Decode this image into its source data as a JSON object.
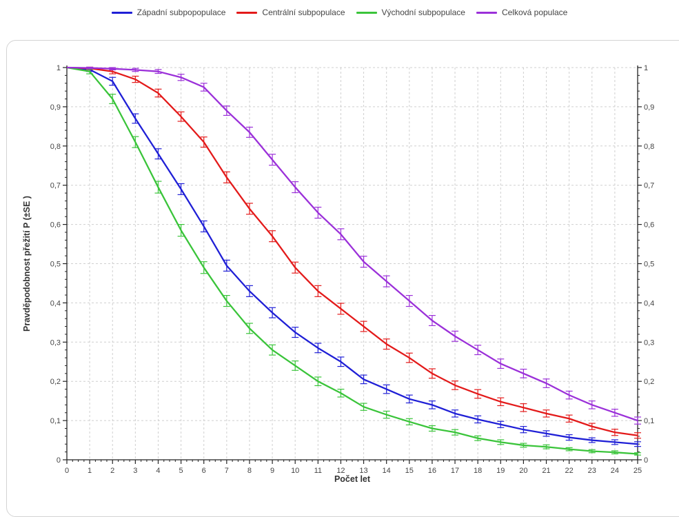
{
  "chart_data": {
    "type": "line",
    "title": "",
    "xlabel": "Počet let",
    "ylabel": "Pravděpodobnost přežití P (±SE )",
    "xlim": [
      0,
      25
    ],
    "ylim": [
      0,
      1
    ],
    "x_ticks": [
      0,
      1,
      2,
      3,
      4,
      5,
      6,
      7,
      8,
      9,
      10,
      11,
      12,
      13,
      14,
      15,
      16,
      17,
      18,
      19,
      20,
      21,
      22,
      23,
      24,
      25
    ],
    "y_tick_labels": [
      "0",
      "0,1",
      "0,2",
      "0,3",
      "0,4",
      "0,5",
      "0,6",
      "0,7",
      "0,8",
      "0,9",
      "1"
    ],
    "grid": true,
    "legend_position": "top",
    "secondary_y_axis": true,
    "x": [
      0,
      1,
      2,
      3,
      4,
      5,
      6,
      7,
      8,
      9,
      10,
      11,
      12,
      13,
      14,
      15,
      16,
      17,
      18,
      19,
      20,
      21,
      22,
      23,
      24,
      25
    ],
    "series": [
      {
        "name": "Západní subpopopulace",
        "color": "#1f1fd6",
        "values": [
          1,
          0.995,
          0.965,
          0.87,
          0.78,
          0.69,
          0.595,
          0.495,
          0.43,
          0.375,
          0.325,
          0.285,
          0.25,
          0.205,
          0.18,
          0.155,
          0.14,
          0.118,
          0.103,
          0.09,
          0.077,
          0.067,
          0.057,
          0.05,
          0.045,
          0.04
        ],
        "se": [
          0,
          0.005,
          0.01,
          0.012,
          0.013,
          0.014,
          0.014,
          0.014,
          0.014,
          0.013,
          0.013,
          0.012,
          0.012,
          0.011,
          0.011,
          0.01,
          0.01,
          0.009,
          0.009,
          0.008,
          0.008,
          0.007,
          0.007,
          0.006,
          0.006,
          0.006
        ]
      },
      {
        "name": "Centrální subpopulace",
        "color": "#e31a1a",
        "values": [
          1,
          0.998,
          0.99,
          0.97,
          0.935,
          0.875,
          0.81,
          0.72,
          0.64,
          0.57,
          0.49,
          0.43,
          0.385,
          0.34,
          0.295,
          0.26,
          0.22,
          0.19,
          0.168,
          0.148,
          0.133,
          0.118,
          0.105,
          0.085,
          0.07,
          0.062
        ],
        "se": [
          0,
          0.003,
          0.006,
          0.008,
          0.01,
          0.012,
          0.013,
          0.014,
          0.014,
          0.014,
          0.014,
          0.014,
          0.014,
          0.013,
          0.013,
          0.012,
          0.012,
          0.011,
          0.011,
          0.01,
          0.01,
          0.009,
          0.009,
          0.008,
          0.008,
          0.007
        ]
      },
      {
        "name": "Východní subpopulace",
        "color": "#3ac43a",
        "values": [
          1,
          0.99,
          0.92,
          0.81,
          0.695,
          0.585,
          0.49,
          0.405,
          0.335,
          0.28,
          0.24,
          0.2,
          0.17,
          0.135,
          0.115,
          0.097,
          0.08,
          0.07,
          0.055,
          0.045,
          0.037,
          0.033,
          0.027,
          0.022,
          0.019,
          0.015
        ],
        "se": [
          0,
          0.006,
          0.012,
          0.014,
          0.015,
          0.015,
          0.015,
          0.014,
          0.013,
          0.013,
          0.012,
          0.011,
          0.01,
          0.009,
          0.009,
          0.008,
          0.007,
          0.007,
          0.006,
          0.006,
          0.005,
          0.005,
          0.004,
          0.004,
          0.004,
          0.003
        ]
      },
      {
        "name": "Celková populace",
        "color": "#9b30d9",
        "values": [
          1,
          0.999,
          0.997,
          0.994,
          0.99,
          0.975,
          0.95,
          0.89,
          0.835,
          0.765,
          0.695,
          0.63,
          0.575,
          0.505,
          0.455,
          0.405,
          0.355,
          0.315,
          0.28,
          0.245,
          0.22,
          0.195,
          0.165,
          0.14,
          0.12,
          0.1
        ],
        "se": [
          0,
          0.002,
          0.003,
          0.004,
          0.005,
          0.008,
          0.01,
          0.012,
          0.013,
          0.014,
          0.014,
          0.014,
          0.014,
          0.014,
          0.014,
          0.014,
          0.013,
          0.013,
          0.012,
          0.012,
          0.011,
          0.011,
          0.01,
          0.01,
          0.009,
          0.009
        ]
      }
    ]
  }
}
